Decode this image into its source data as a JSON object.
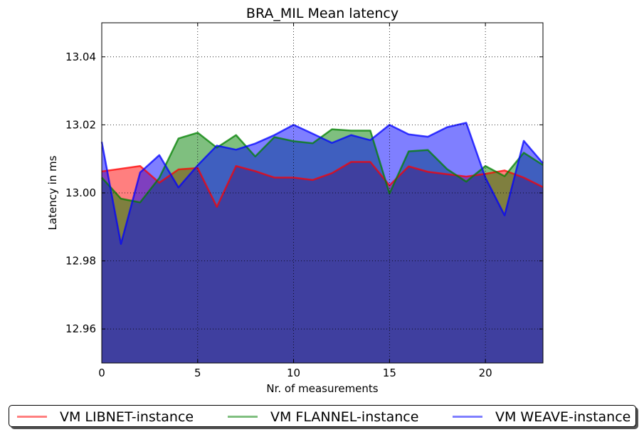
{
  "chart_data": {
    "type": "area",
    "title": "BRA_MIL Mean latency",
    "xlabel": "Nr. of measurements",
    "ylabel": "Latency in ms",
    "xlim": [
      0,
      23
    ],
    "ylim": [
      12.95,
      13.05
    ],
    "xticks": [
      "0",
      "5",
      "10",
      "15",
      "20"
    ],
    "xtick_values": [
      0,
      5,
      10,
      15,
      20
    ],
    "yticks": [
      "12.96",
      "12.98",
      "13.00",
      "13.02",
      "13.04"
    ],
    "ytick_values": [
      12.96,
      12.98,
      13.0,
      13.02,
      13.04
    ],
    "grid": true,
    "legend_position": "bottom",
    "x": [
      0,
      1,
      2,
      3,
      4,
      5,
      6,
      7,
      8,
      9,
      10,
      11,
      12,
      13,
      14,
      15,
      16,
      17,
      18,
      19,
      20,
      21,
      22,
      23
    ],
    "series": [
      {
        "name": "VM LIBNET-instance",
        "color": "#ff0000",
        "values": [
          13.0063,
          13.0071,
          13.0079,
          13.003,
          13.0069,
          13.0073,
          12.9959,
          13.0079,
          13.0064,
          13.0045,
          13.0045,
          13.0038,
          13.0058,
          13.0091,
          13.0091,
          13.0022,
          13.0078,
          13.0062,
          13.0055,
          13.0048,
          13.0056,
          13.0066,
          13.0045,
          13.0017
        ]
      },
      {
        "name": "VM FLANNEL-instance",
        "color": "#008000",
        "values": [
          13.0045,
          12.9983,
          12.9972,
          13.0044,
          13.016,
          13.0177,
          13.0133,
          13.017,
          13.0107,
          13.0164,
          13.0152,
          13.0146,
          13.0187,
          13.0183,
          13.0183,
          12.9998,
          13.0122,
          13.0126,
          13.007,
          13.0033,
          13.0079,
          13.0049,
          13.0118,
          13.0082
        ]
      },
      {
        "name": "VM WEAVE-instance",
        "color": "#0000ff",
        "values": [
          13.015,
          12.985,
          13.006,
          13.0111,
          13.0016,
          13.0081,
          13.0139,
          13.0127,
          13.0145,
          13.017,
          13.02,
          13.0174,
          13.0147,
          13.017,
          13.0155,
          13.02,
          13.0172,
          13.0165,
          13.0193,
          13.0206,
          13.0045,
          12.9934,
          13.0153,
          13.0087
        ]
      }
    ]
  }
}
